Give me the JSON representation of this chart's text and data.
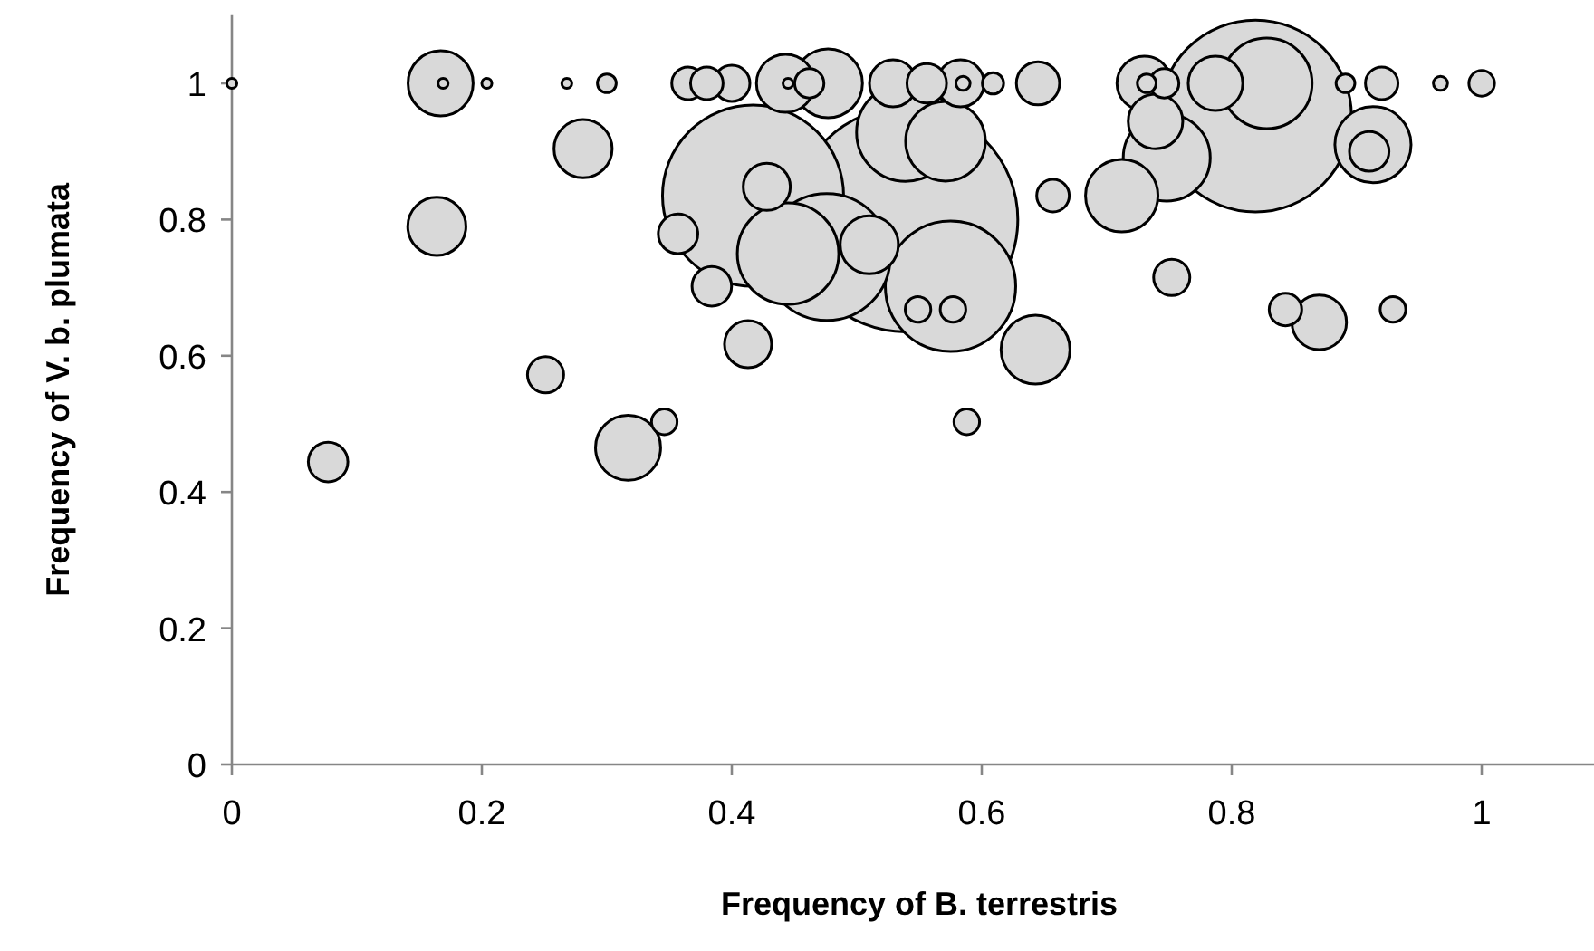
{
  "chart_data": {
    "type": "bubble",
    "xlabel": "Frequency of B. terrestris",
    "ylabel": "Frequency of V. b. plumata",
    "xlim": [
      0,
      1.1
    ],
    "ylim": [
      0,
      1.1
    ],
    "xticks": [
      0,
      0.2,
      0.4,
      0.6,
      0.8,
      1
    ],
    "yticks": [
      0,
      0.2,
      0.4,
      0.6,
      0.8,
      1
    ],
    "grid": false,
    "series": [
      {
        "color": "#d9d9d9",
        "x": [
          0.539,
          0.819,
          0.417,
          0.575,
          0.476,
          0.445,
          0.539,
          0.828,
          0.748,
          0.571,
          0.913,
          0.712,
          0.477,
          0.643,
          0.167,
          0.317,
          0.443,
          0.281,
          0.164,
          0.51,
          0.73,
          0.787,
          0.739,
          0.87,
          0.529,
          0.583,
          0.428,
          0.413,
          0.645,
          0.556,
          0.357,
          0.384,
          0.077,
          0.91,
          0.4,
          0.251,
          0.752,
          0.365,
          0.38,
          0.92,
          0.657,
          0.843,
          0.462,
          0.746,
          1.0,
          0.346,
          0.549,
          0.577,
          0.588,
          0.929,
          0.609,
          0.3,
          0.732,
          0.891,
          0.585,
          0.967,
          0,
          0.169,
          0.204,
          0.268,
          0.445
        ],
        "values": [
          0.8,
          0.952,
          0.835,
          0.702,
          0.745,
          0.75,
          0.928,
          1,
          0.891,
          0.915,
          0.91,
          0.835,
          1,
          0.609,
          1,
          0.465,
          1,
          0.904,
          0.79,
          0.763,
          1,
          1,
          0.944,
          0.649,
          1,
          1,
          0.848,
          0.617,
          1,
          1,
          0.779,
          0.702,
          0.444,
          0.9,
          1,
          0.572,
          0.715,
          1,
          1,
          1,
          0.835,
          0.668,
          1,
          1,
          1,
          0.503,
          0.668,
          0.668,
          0.503,
          0.668,
          1,
          1,
          1,
          1,
          1,
          1,
          1,
          1,
          1,
          1,
          1
        ],
        "sizes": [
          1,
          0.73,
          0.65,
          0.337,
          0.319,
          0.204,
          0.19,
          0.163,
          0.15,
          0.126,
          0.115,
          0.104,
          0.094,
          0.094,
          0.084,
          0.084,
          0.067,
          0.067,
          0.067,
          0.067,
          0.059,
          0.059,
          0.059,
          0.059,
          0.044,
          0.044,
          0.044,
          0.044,
          0.037,
          0.031,
          0.031,
          0.031,
          0.031,
          0.031,
          0.026,
          0.026,
          0.026,
          0.021,
          0.021,
          0.021,
          0.021,
          0.021,
          0.017,
          0.017,
          0.013,
          0.013,
          0.013,
          0.013,
          0.013,
          0.013,
          0.009,
          0.007,
          0.007,
          0.007,
          0.004,
          0.004,
          0.002,
          0.002,
          0.002,
          0.002,
          0.002
        ]
      }
    ]
  }
}
